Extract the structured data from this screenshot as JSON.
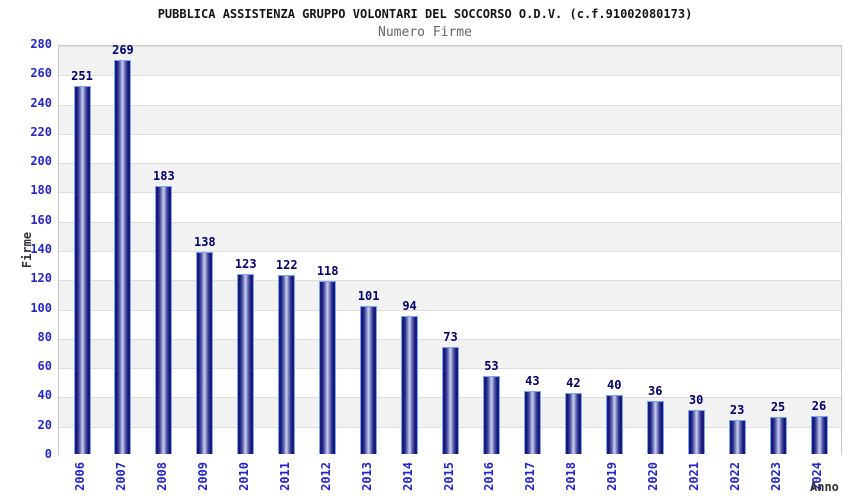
{
  "chart_data": {
    "type": "bar",
    "title": "PUBBLICA ASSISTENZA GRUPPO VOLONTARI DEL SOCCORSO O.D.V. (c.f.91002080173)",
    "subtitle": "Numero Firme",
    "xlabel": "Anno",
    "ylabel": "Firme",
    "categories": [
      "2006",
      "2007",
      "2008",
      "2009",
      "2010",
      "2011",
      "2012",
      "2013",
      "2014",
      "2015",
      "2016",
      "2017",
      "2018",
      "2019",
      "2020",
      "2021",
      "2022",
      "2023",
      "2024"
    ],
    "values": [
      251,
      269,
      183,
      138,
      123,
      122,
      118,
      101,
      94,
      73,
      53,
      43,
      42,
      40,
      36,
      30,
      23,
      25,
      26
    ],
    "ylim": [
      0,
      280
    ],
    "yticks": [
      0,
      20,
      40,
      60,
      80,
      100,
      120,
      140,
      160,
      180,
      200,
      220,
      240,
      260,
      280
    ],
    "grid": "horizontal-bands-alternating",
    "legend": "none",
    "colors": {
      "bar_edge": "#11116e",
      "bar_center": "#ccd2ee",
      "bar_outline": "#74a7f8",
      "tick_label": "#2525cd",
      "value_label": "#00006e",
      "band_gray": "#f2f2f2",
      "band_line": "#dedede",
      "axis_title": "#333333",
      "title": "#141414",
      "subtitle": "#666666"
    }
  }
}
